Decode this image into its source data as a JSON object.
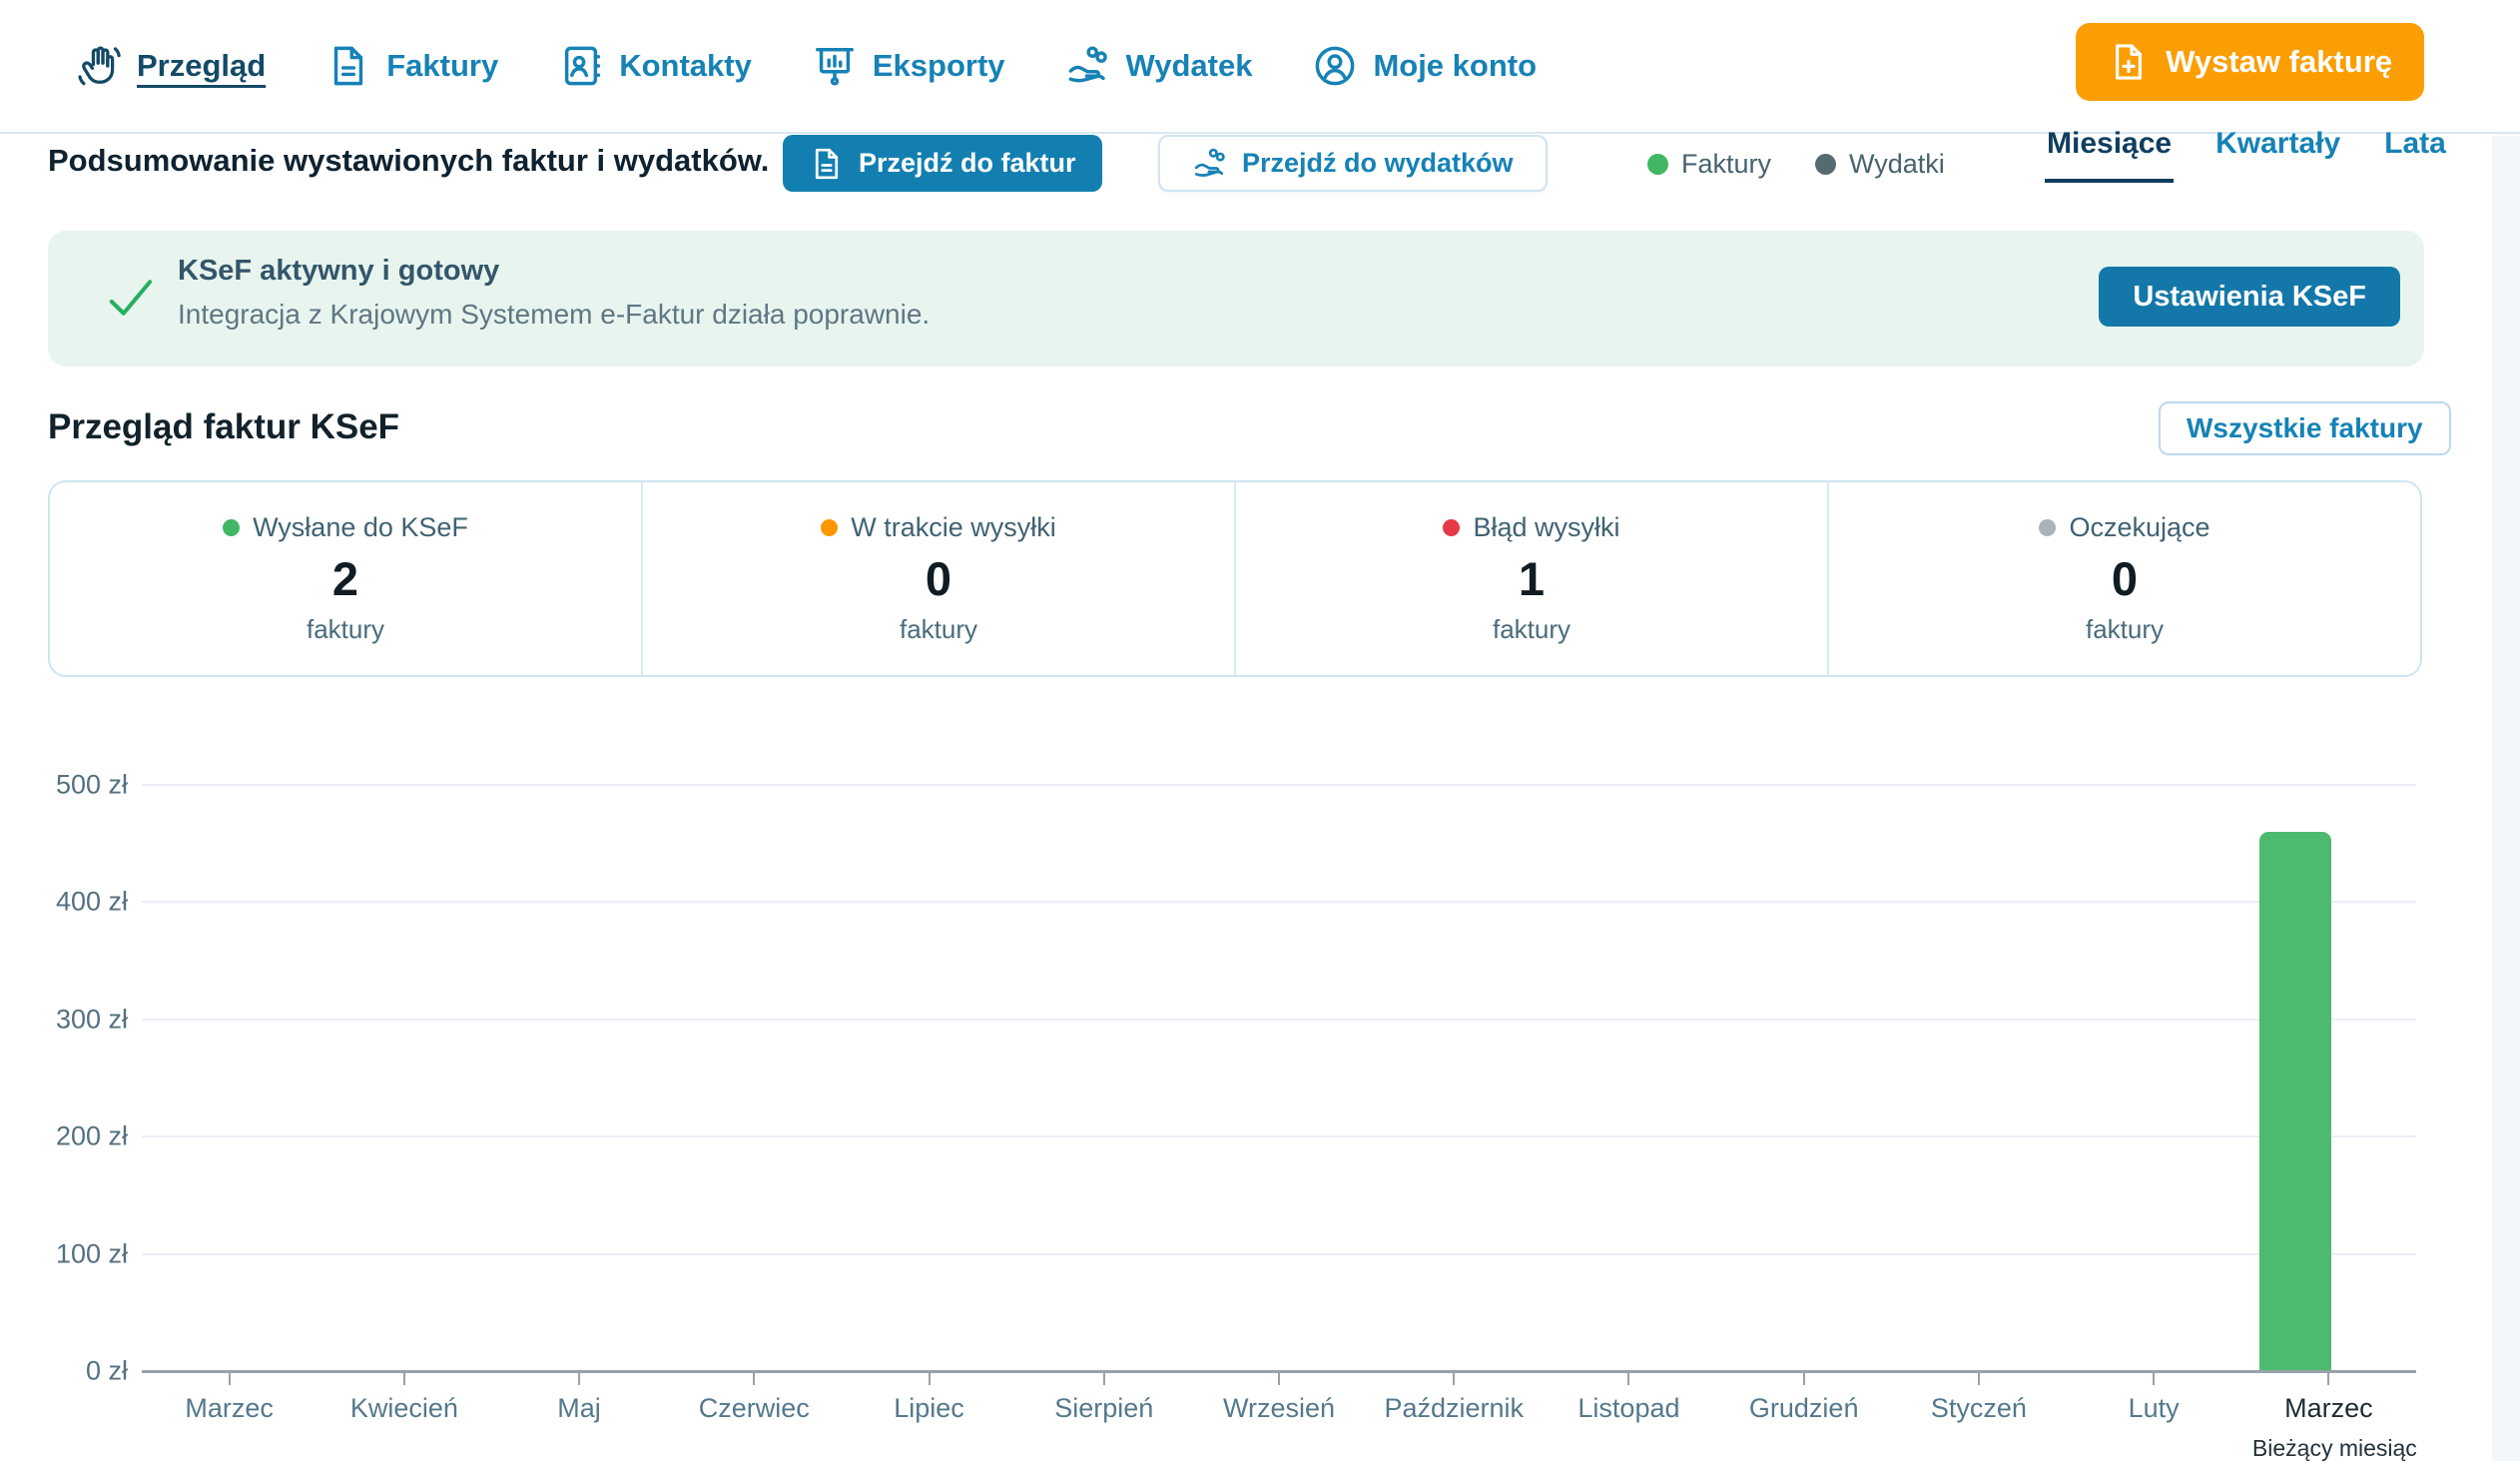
{
  "nav": {
    "items": [
      {
        "label": "Przegląd",
        "icon": "wave-hand-icon",
        "active": true
      },
      {
        "label": "Faktury",
        "icon": "invoice-icon",
        "active": false
      },
      {
        "label": "Kontakty",
        "icon": "contacts-icon",
        "active": false
      },
      {
        "label": "Eksporty",
        "icon": "exports-icon",
        "active": false
      },
      {
        "label": "Wydatek",
        "icon": "expense-icon",
        "active": false
      },
      {
        "label": "Moje konto",
        "icon": "account-icon",
        "active": false
      }
    ],
    "cta_label": "Wystaw fakturę"
  },
  "toolbar": {
    "summary_text": "Podsumowanie wystawionych faktur i wydatków.",
    "go_invoices_label": "Przejdź do faktur",
    "go_expenses_label": "Przejdź do wydatków",
    "legend": [
      {
        "label": "Faktury",
        "color": "#41b664"
      },
      {
        "label": "Wydatki",
        "color": "#566a72"
      }
    ],
    "period_tabs": [
      {
        "label": "Miesiące",
        "active": true
      },
      {
        "label": "Kwartały",
        "active": false
      },
      {
        "label": "Lata",
        "active": false
      }
    ]
  },
  "ksef_banner": {
    "title": "KSeF aktywny i gotowy",
    "subtitle": "Integracja z Krajowym Systemem e-Faktur działa poprawnie.",
    "button_label": "Ustawienia KSeF"
  },
  "ksef_overview": {
    "heading": "Przegląd faktur KSeF",
    "all_invoices_label": "Wszystkie faktury",
    "stats": [
      {
        "label": "Wysłane do KSeF",
        "value": "2",
        "unit": "faktury",
        "color": "#41b664"
      },
      {
        "label": "W trakcie wysyłki",
        "value": "0",
        "unit": "faktury",
        "color": "#ff9800"
      },
      {
        "label": "Błąd wysyłki",
        "value": "1",
        "unit": "faktury",
        "color": "#e63946"
      },
      {
        "label": "Oczekujące",
        "value": "0",
        "unit": "faktury",
        "color": "#a8b4bc"
      }
    ]
  },
  "chart_data": {
    "type": "bar",
    "categories": [
      "Marzec",
      "Kwiecień",
      "Maj",
      "Czerwiec",
      "Lipiec",
      "Sierpień",
      "Wrzesień",
      "Październik",
      "Listopad",
      "Grudzień",
      "Styczeń",
      "Luty",
      "Marzec"
    ],
    "series": [
      {
        "name": "Faktury",
        "color": "#4dba6f",
        "values": [
          0,
          0,
          0,
          0,
          0,
          0,
          0,
          0,
          0,
          0,
          0,
          0,
          460
        ]
      }
    ],
    "ylabel_ticks": [
      "0 zł",
      "100 zł",
      "200 zł",
      "300 zł",
      "400 zł",
      "500 zł"
    ],
    "ylim": [
      0,
      500
    ],
    "grid": true,
    "current_month_index": 12,
    "current_month_note": "Bieżący miesiąc"
  },
  "colors": {
    "accent_blue": "#1682b6",
    "active_navy": "#134a66",
    "cta_orange": "#fb9e04",
    "filled_button_blue": "#137fb0",
    "banner_green_bg": "#e8f5ee",
    "check_green": "#27ae60",
    "bar_green": "#4dba6f",
    "card_border": "#cfe4f2"
  }
}
